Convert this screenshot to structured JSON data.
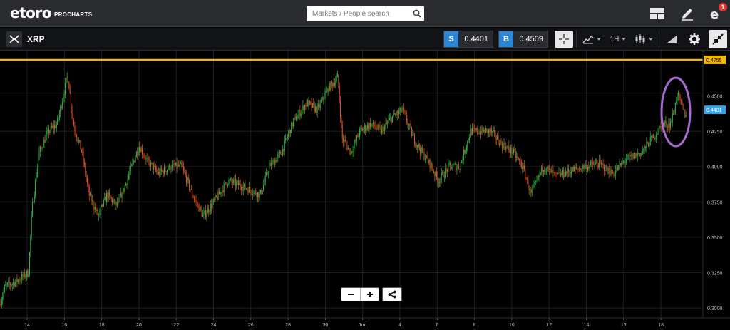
{
  "header": {
    "logo_text": "etoro",
    "logo_sub": "PROCHARTS",
    "search_placeholder": "Markets / People search",
    "notification_count": "1"
  },
  "instrument": {
    "name": "XRP",
    "sell_label": "S",
    "sell_price": "0.4401",
    "buy_label": "B",
    "buy_price": "0.4509",
    "timeframe": "1H"
  },
  "chart_data": {
    "type": "candlestick",
    "title": "XRP",
    "timeframe": "1H",
    "y_axis": {
      "min": 0.295,
      "max": 0.48,
      "ticks": [
        "0.4500",
        "0.4250",
        "0.4000",
        "0.3750",
        "0.3500",
        "0.3250",
        "0.3000"
      ]
    },
    "x_axis": {
      "ticks": [
        "14",
        "16",
        "18",
        "20",
        "22",
        "24",
        "26",
        "28",
        "30",
        "Jun",
        "4",
        "6",
        "8",
        "10",
        "12",
        "14",
        "16",
        "18"
      ]
    },
    "resistance_line": {
      "value": 0.4755,
      "label": "0.4755",
      "color": "#f5b800"
    },
    "current_price": {
      "value": 0.4401,
      "label": "0.4401",
      "color": "#3aa0e6"
    },
    "highlight": {
      "shape": "ellipse",
      "color": "#a66bd3"
    },
    "price_path": [
      [
        0,
        0.303
      ],
      [
        7,
        0.315
      ],
      [
        20,
        0.318
      ],
      [
        40,
        0.325
      ],
      [
        45,
        0.37
      ],
      [
        55,
        0.41
      ],
      [
        68,
        0.425
      ],
      [
        80,
        0.43
      ],
      [
        95,
        0.465
      ],
      [
        103,
        0.43
      ],
      [
        115,
        0.41
      ],
      [
        125,
        0.38
      ],
      [
        138,
        0.365
      ],
      [
        150,
        0.38
      ],
      [
        165,
        0.372
      ],
      [
        178,
        0.39
      ],
      [
        195,
        0.415
      ],
      [
        205,
        0.405
      ],
      [
        222,
        0.395
      ],
      [
        240,
        0.4
      ],
      [
        255,
        0.4
      ],
      [
        270,
        0.38
      ],
      [
        285,
        0.365
      ],
      [
        300,
        0.375
      ],
      [
        320,
        0.39
      ],
      [
        345,
        0.385
      ],
      [
        365,
        0.38
      ],
      [
        378,
        0.4
      ],
      [
        395,
        0.41
      ],
      [
        410,
        0.43
      ],
      [
        430,
        0.445
      ],
      [
        445,
        0.44
      ],
      [
        460,
        0.455
      ],
      [
        474,
        0.463
      ],
      [
        480,
        0.42
      ],
      [
        492,
        0.41
      ],
      [
        505,
        0.425
      ],
      [
        520,
        0.43
      ],
      [
        535,
        0.425
      ],
      [
        550,
        0.435
      ],
      [
        565,
        0.44
      ],
      [
        580,
        0.42
      ],
      [
        592,
        0.41
      ],
      [
        605,
        0.4
      ],
      [
        615,
        0.39
      ],
      [
        630,
        0.4
      ],
      [
        645,
        0.4
      ],
      [
        660,
        0.425
      ],
      [
        675,
        0.425
      ],
      [
        688,
        0.425
      ],
      [
        705,
        0.415
      ],
      [
        720,
        0.41
      ],
      [
        733,
        0.4
      ],
      [
        745,
        0.38
      ],
      [
        762,
        0.4
      ],
      [
        780,
        0.393
      ],
      [
        800,
        0.397
      ],
      [
        822,
        0.4
      ],
      [
        840,
        0.402
      ],
      [
        860,
        0.395
      ],
      [
        878,
        0.405
      ],
      [
        900,
        0.41
      ],
      [
        915,
        0.42
      ],
      [
        930,
        0.43
      ],
      [
        940,
        0.43
      ],
      [
        946,
        0.44
      ],
      [
        950,
        0.452
      ],
      [
        958,
        0.44
      ],
      [
        963,
        0.435
      ]
    ]
  },
  "colors": {
    "up": "#2fb34a",
    "down": "#e0552b",
    "grid": "#1f2024",
    "axis_text": "#bbbbbb"
  }
}
